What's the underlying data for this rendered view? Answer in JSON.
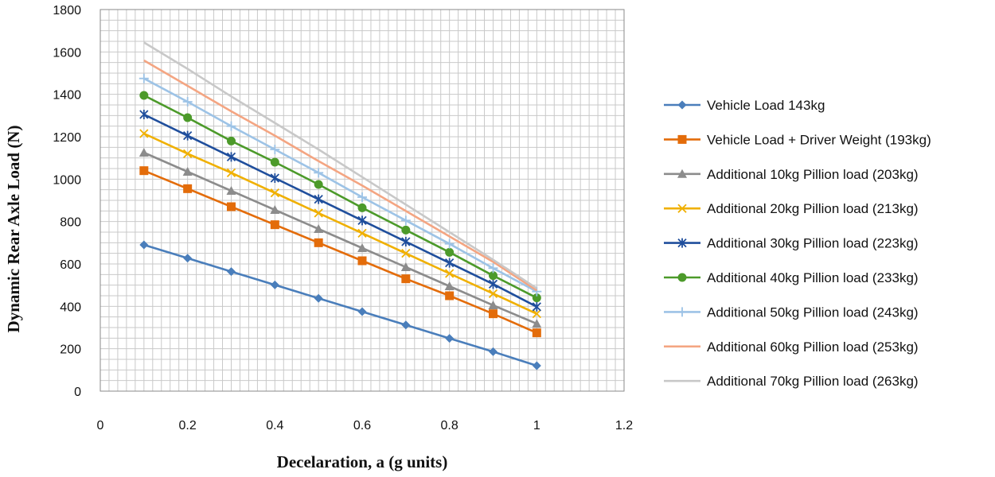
{
  "chart_data": {
    "type": "line",
    "title": "",
    "xlabel": "Decelaration, a (g units)",
    "ylabel": "Dynamic Rear Axle Load (N)",
    "xlim": [
      0,
      1.2
    ],
    "ylim": [
      0,
      1800
    ],
    "xticks": [
      "0",
      "0.2",
      "0.4",
      "0.6",
      "0.8",
      "1",
      "1.2"
    ],
    "yticks": [
      "0",
      "200",
      "400",
      "600",
      "800",
      "1000",
      "1200",
      "1400",
      "1600",
      "1800"
    ],
    "grid": true,
    "legend_position": "right",
    "x": [
      0.1,
      0.2,
      0.3,
      0.4,
      0.5,
      0.6,
      0.7,
      0.8,
      0.9,
      1.0
    ],
    "series": [
      {
        "name": "Vehicle Load 143kg",
        "color": "#4a7ebb",
        "marker": "diamond",
        "values": [
          690,
          627,
          564,
          501,
          438,
          375,
          312,
          249,
          186,
          120
        ]
      },
      {
        "name": "Vehicle Load + Driver Weight (193kg)",
        "color": "#e36c0a",
        "marker": "square",
        "values": [
          1040,
          955,
          870,
          785,
          700,
          615,
          530,
          450,
          365,
          275
        ]
      },
      {
        "name": "Additional 10kg Pillion load (203kg)",
        "color": "#8c8c8c",
        "marker": "triangle",
        "values": [
          1125,
          1035,
          945,
          855,
          765,
          675,
          585,
          495,
          405,
          318
        ]
      },
      {
        "name": "Additional 20kg Pillion load (213kg)",
        "color": "#f0b000",
        "marker": "x",
        "values": [
          1215,
          1120,
          1030,
          935,
          840,
          745,
          650,
          555,
          460,
          365
        ]
      },
      {
        "name": "Additional 30kg Pillion load (223kg)",
        "color": "#1f4e9c",
        "marker": "star",
        "values": [
          1305,
          1205,
          1105,
          1005,
          905,
          805,
          705,
          605,
          505,
          398
        ]
      },
      {
        "name": "Additional 40kg Pillion load (233kg)",
        "color": "#4c9a2a",
        "marker": "circle",
        "values": [
          1395,
          1290,
          1180,
          1080,
          975,
          865,
          760,
          655,
          545,
          440
        ]
      },
      {
        "name": "Additional 50kg Pillion load (243kg)",
        "color": "#9dc3e6",
        "marker": "plus",
        "values": [
          1475,
          1365,
          1250,
          1140,
          1030,
          915,
          805,
          695,
          580,
          470
        ]
      },
      {
        "name": "Additional 60kg Pillion load (253kg)",
        "color": "#f4a582",
        "marker": "none",
        "values": [
          1560,
          1440,
          1320,
          1205,
          1085,
          970,
          850,
          730,
          610,
          475
        ]
      },
      {
        "name": "Additional 70kg Pillion load (263kg)",
        "color": "#c8c8c8",
        "marker": "none",
        "values": [
          1645,
          1520,
          1390,
          1265,
          1140,
          1010,
          880,
          750,
          620,
          485
        ]
      }
    ]
  }
}
